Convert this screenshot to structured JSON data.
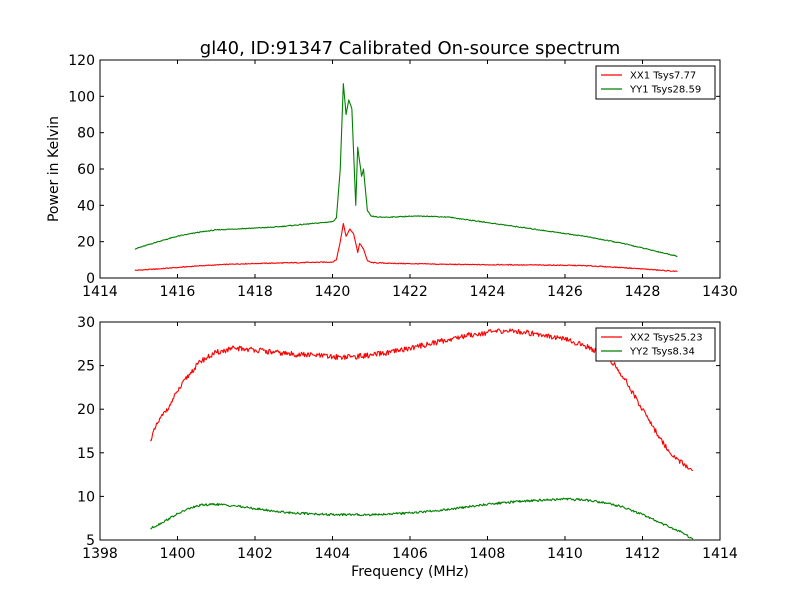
{
  "figure": {
    "title": "gl40, ID:91347 Calibrated On-source spectrum"
  },
  "chart_data": [
    {
      "type": "line",
      "title": "gl40, ID:91347 Calibrated On-source spectrum",
      "xlabel": "",
      "ylabel": "Power in Kelvin",
      "xlim": [
        1414,
        1430
      ],
      "ylim": [
        0,
        120
      ],
      "xticks": [
        1414,
        1416,
        1418,
        1420,
        1422,
        1424,
        1426,
        1428,
        1430
      ],
      "yticks": [
        0,
        20,
        40,
        60,
        80,
        100,
        120
      ],
      "legend_position": "top-right",
      "series": [
        {
          "name": "XX1 Tsys7.77",
          "color": "#ff0000",
          "x": [
            1414.9,
            1415.5,
            1416.0,
            1416.5,
            1417.0,
            1417.5,
            1418.0,
            1418.5,
            1419.0,
            1419.5,
            1420.0,
            1420.1,
            1420.2,
            1420.28,
            1420.35,
            1420.45,
            1420.55,
            1420.65,
            1420.7,
            1420.8,
            1420.9,
            1421.0,
            1421.2,
            1421.5,
            1422.0,
            1422.5,
            1423.0,
            1423.5,
            1424.0,
            1424.5,
            1425.0,
            1425.5,
            1426.0,
            1426.5,
            1427.0,
            1427.5,
            1428.0,
            1428.5,
            1428.9
          ],
          "values": [
            4.2,
            5.0,
            5.8,
            6.6,
            7.2,
            7.7,
            8.0,
            8.2,
            8.4,
            8.6,
            8.8,
            10,
            20,
            30,
            23,
            27,
            24,
            14,
            19,
            16,
            9.5,
            8.5,
            8.3,
            8.1,
            7.9,
            7.7,
            7.5,
            7.4,
            7.3,
            7.3,
            7.2,
            7.1,
            7.0,
            6.8,
            6.3,
            5.7,
            5.0,
            4.2,
            3.6
          ]
        },
        {
          "name": "YY1 Tsys28.59",
          "color": "#008000",
          "x": [
            1414.9,
            1415.5,
            1416.0,
            1416.5,
            1417.0,
            1417.5,
            1418.0,
            1418.5,
            1419.0,
            1419.5,
            1420.0,
            1420.1,
            1420.2,
            1420.28,
            1420.35,
            1420.42,
            1420.5,
            1420.6,
            1420.65,
            1420.75,
            1420.8,
            1420.9,
            1421.0,
            1421.2,
            1421.5,
            1422.0,
            1422.5,
            1423.0,
            1423.5,
            1424.0,
            1424.5,
            1425.0,
            1425.5,
            1426.0,
            1426.5,
            1427.0,
            1427.5,
            1428.0,
            1428.5,
            1428.9
          ],
          "values": [
            16,
            20,
            23,
            25,
            26.5,
            27,
            27.5,
            28,
            29,
            30,
            31,
            33,
            60,
            107,
            90,
            98,
            93,
            40,
            72,
            56,
            60,
            37,
            34,
            33.5,
            33.5,
            34,
            34,
            33.5,
            32,
            30.5,
            29,
            27.5,
            26,
            24.5,
            23,
            21,
            19,
            16.5,
            14,
            12
          ]
        }
      ]
    },
    {
      "type": "line",
      "title": "",
      "xlabel": "Frequency (MHz)",
      "ylabel": "",
      "xlim": [
        1398,
        1414
      ],
      "ylim": [
        5,
        30
      ],
      "xticks": [
        1398,
        1400,
        1402,
        1404,
        1406,
        1408,
        1410,
        1412,
        1414
      ],
      "yticks": [
        5,
        10,
        15,
        20,
        25,
        30
      ],
      "legend_position": "top-right",
      "series": [
        {
          "name": "XX2 Tsys25.23",
          "color": "#ff0000",
          "x": [
            1399.3,
            1399.5,
            1399.8,
            1400.0,
            1400.3,
            1400.6,
            1401.0,
            1401.5,
            1402.0,
            1402.5,
            1403.0,
            1403.5,
            1404.0,
            1404.5,
            1405.0,
            1405.5,
            1406.0,
            1406.5,
            1407.0,
            1407.5,
            1408.0,
            1408.5,
            1409.0,
            1409.5,
            1410.0,
            1410.5,
            1411.0,
            1411.3,
            1411.6,
            1412.0,
            1412.4,
            1412.8,
            1413.3
          ],
          "values": [
            16.5,
            18.5,
            20.5,
            22,
            24,
            25.5,
            26.5,
            27,
            26.8,
            26.5,
            26.3,
            26.2,
            26.0,
            26.0,
            26.2,
            26.5,
            27.0,
            27.5,
            28.0,
            28.5,
            28.8,
            29.0,
            28.8,
            28.5,
            28.0,
            27.3,
            26.3,
            25,
            23,
            20,
            17,
            14.5,
            13
          ]
        },
        {
          "name": "YY2 Tsys8.34",
          "color": "#008000",
          "x": [
            1399.3,
            1399.6,
            1400.0,
            1400.3,
            1400.6,
            1401.0,
            1401.5,
            1402.0,
            1402.5,
            1403.0,
            1403.5,
            1404.0,
            1404.5,
            1405.0,
            1405.5,
            1406.0,
            1406.5,
            1407.0,
            1407.5,
            1408.0,
            1408.5,
            1409.0,
            1409.5,
            1410.0,
            1410.5,
            1411.0,
            1411.5,
            1412.0,
            1412.5,
            1413.0,
            1413.3
          ],
          "values": [
            6.3,
            7.0,
            8.0,
            8.6,
            9.0,
            9.1,
            8.9,
            8.6,
            8.3,
            8.1,
            8.0,
            7.9,
            7.9,
            7.9,
            8.0,
            8.1,
            8.3,
            8.5,
            8.8,
            9.1,
            9.3,
            9.5,
            9.6,
            9.7,
            9.6,
            9.3,
            8.8,
            7.9,
            6.9,
            5.9,
            5.1
          ]
        }
      ]
    }
  ]
}
